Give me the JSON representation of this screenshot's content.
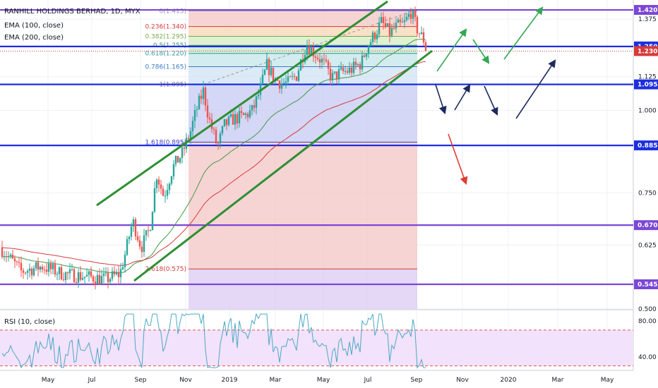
{
  "header": {
    "title": "RANHILL HOLDINGS BERHAD, 1D, MYX",
    "ema100_label": "EMA (100, close)",
    "ema200_label": "EMA (200, close)"
  },
  "rsi_panel": {
    "label": "RSI (10, close)",
    "ticks": [
      "80.00",
      "40.00"
    ],
    "levels": [
      70,
      30
    ],
    "band_color": "#f3e2fb",
    "line_color": "#4aa9c4"
  },
  "colors": {
    "up_candle": "#26a69a",
    "down_candle": "#ef5350",
    "ema100": "#3f9a45",
    "ema200": "#d63a3a",
    "horizontal_blue": "#1d2ee0",
    "horizontal_purple": "#7b47d6",
    "channel": "#2e8f33",
    "last_price": "#d63a3a"
  },
  "chart_data": [
    {
      "type": "line",
      "kind": "candlestick price chart",
      "symbol": "RANHILL HOLDINGS BERHAD",
      "interval": "1D",
      "exchange": "MYX",
      "y_scale": "log",
      "ylim": [
        0.5,
        1.47
      ],
      "price_ticks": [
        "1.375",
        "1.125",
        "1.000",
        "0.750",
        "0.625",
        "0.500"
      ],
      "x_ticks": [
        "May",
        "Jul",
        "Sep",
        "Nov",
        "2019",
        "Mar",
        "May",
        "Jul",
        "Sep",
        "Nov",
        "2020",
        "Mar",
        "May"
      ],
      "last_price": "1.230",
      "horizontal_levels": [
        {
          "value": "1.420",
          "color": "purple"
        },
        {
          "value": "1.250",
          "color": "blue"
        },
        {
          "value": "1.095",
          "color": "blue"
        },
        {
          "value": "0.885",
          "color": "blue"
        },
        {
          "value": "0.670",
          "color": "purple"
        },
        {
          "value": "0.545",
          "color": "purple"
        }
      ],
      "fibonacci": [
        {
          "ratio": "0",
          "price": "1.415",
          "label": "0(1.415)"
        },
        {
          "ratio": "0.236",
          "price": "1.340",
          "label": "0.236(1.340)"
        },
        {
          "ratio": "0.382",
          "price": "1.295",
          "label": "0.382(1.295)"
        },
        {
          "ratio": "0.5",
          "price": "1.255",
          "label": "0.5(1.255)"
        },
        {
          "ratio": "0.618",
          "price": "1.220",
          "label": "0.618(1.220)"
        },
        {
          "ratio": "0.786",
          "price": "1.165",
          "label": "0.786(1.165)"
        },
        {
          "ratio": "1",
          "price": "1.095",
          "label": "1(1.095)"
        },
        {
          "ratio": "1.618",
          "price": "0.895",
          "label": "1.618(0.895)"
        },
        {
          "ratio": "2.618",
          "price": "0.575",
          "label": "2.618(0.575)"
        }
      ],
      "series": [
        {
          "name": "EMA (100, close)",
          "color": "#3f9a45"
        },
        {
          "name": "EMA (200, close)",
          "color": "#d63a3a"
        }
      ],
      "grid": true
    },
    {
      "type": "line",
      "kind": "oscillator",
      "ylim": [
        25,
        92
      ],
      "ticks": [
        "80.00",
        "40.00"
      ],
      "levels": [
        70,
        30
      ]
    }
  ]
}
